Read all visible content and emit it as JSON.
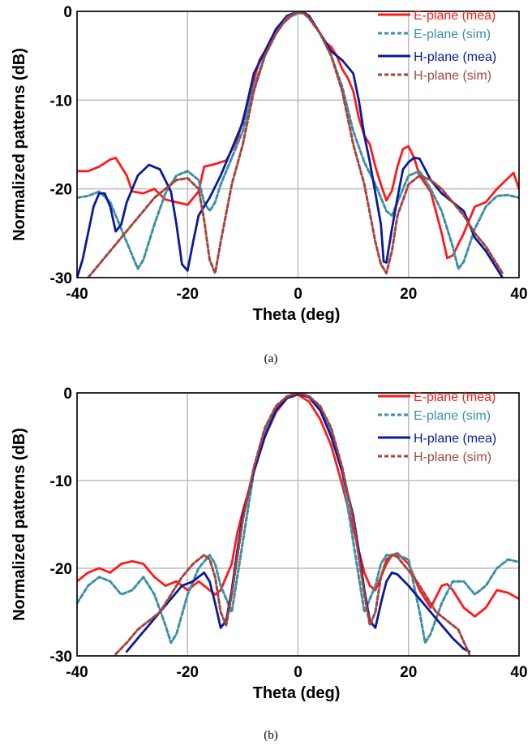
{
  "chart_data": [
    {
      "type": "line",
      "caption": "(a)",
      "xlabel": "Theta (deg)",
      "ylabel": "Normalized patterns (dB)",
      "xlim": [
        -40,
        40
      ],
      "ylim": [
        -30,
        0
      ],
      "xticks": [
        "-40",
        "-20",
        "0",
        "20",
        "40"
      ],
      "yticks": [
        "0",
        "-10",
        "-20",
        "-30"
      ],
      "grid": true,
      "legend_position": "top-right",
      "series": [
        {
          "name": "E-plane (mea)",
          "color": "#ff1a1a",
          "dash": "solid",
          "x": [
            -40,
            -38,
            -36,
            -34,
            -33,
            -31,
            -30,
            -28,
            -26,
            -24,
            -22,
            -20,
            -18,
            -17,
            -15,
            -13,
            -11,
            -9,
            -7,
            -5,
            -3,
            -1,
            0,
            1,
            2,
            3,
            4,
            5,
            6,
            7,
            8,
            9,
            10,
            11,
            12,
            13,
            14,
            15,
            16,
            17,
            18,
            19,
            20,
            21,
            22,
            24,
            26,
            27,
            28,
            30,
            32,
            34,
            36,
            38,
            39,
            40
          ],
          "y": [
            -18,
            -18,
            -17.5,
            -16.7,
            -16.5,
            -18.5,
            -20.3,
            -20.5,
            -20,
            -21.2,
            -21.5,
            -21.8,
            -20.3,
            -17.5,
            -17.2,
            -16.8,
            -14.5,
            -10,
            -5.5,
            -3.5,
            -1.5,
            -0.4,
            -0.1,
            -0.2,
            -0.5,
            -1.5,
            -2.5,
            -3.5,
            -4,
            -5,
            -6.5,
            -7.5,
            -9,
            -12,
            -14,
            -15,
            -17.5,
            -19.5,
            -21.3,
            -20.2,
            -17.5,
            -15.5,
            -15.2,
            -16.5,
            -18.5,
            -20.3,
            -25,
            -27.8,
            -27.5,
            -25,
            -22,
            -21.5,
            -20,
            -18.8,
            -18.2,
            -20
          ]
        },
        {
          "name": "E-plane (sim)",
          "color": "#3d8fa6",
          "dash": "dotted",
          "x": [
            -40,
            -38,
            -36,
            -34,
            -32,
            -30,
            -29,
            -28,
            -26,
            -24,
            -22,
            -20,
            -18,
            -17,
            -16,
            -15,
            -14,
            -12,
            -10,
            -8,
            -6,
            -4,
            -2,
            0,
            1,
            2,
            4,
            6,
            8,
            10,
            12,
            14,
            16,
            17,
            18,
            20,
            22,
            24,
            26,
            28,
            29,
            30,
            32,
            34,
            36,
            38,
            40
          ],
          "y": [
            -21,
            -20.8,
            -20.3,
            -21.5,
            -24.5,
            -27.5,
            -29,
            -28,
            -24,
            -20.5,
            -18.5,
            -18,
            -19,
            -21.5,
            -22.5,
            -21.5,
            -19.5,
            -16.5,
            -13.5,
            -8.5,
            -5,
            -2.5,
            -0.8,
            -0.2,
            -0.2,
            -0.8,
            -2.5,
            -5,
            -8.5,
            -13.5,
            -17,
            -19.5,
            -22.5,
            -23,
            -21.5,
            -18.5,
            -18,
            -20,
            -22.5,
            -26.5,
            -29,
            -28.2,
            -24.5,
            -22,
            -20.8,
            -20.7,
            -21
          ]
        },
        {
          "name": "H-plane (mea)",
          "color": "#0a1a99",
          "dash": "solid",
          "x": [
            -40,
            -39,
            -37,
            -36,
            -35,
            -34,
            -33,
            -32,
            -31,
            -29,
            -27,
            -25,
            -23,
            -22,
            -21,
            -20,
            -19,
            -18,
            -16,
            -14,
            -12,
            -10,
            -8,
            -6,
            -4,
            -2,
            0,
            1,
            2,
            4,
            6,
            8,
            10,
            11,
            12,
            13,
            14,
            15,
            15.5,
            16,
            17,
            18,
            19,
            20,
            21,
            22,
            23,
            24,
            26,
            28,
            30,
            32,
            34,
            36,
            37
          ],
          "y": [
            -30,
            -28,
            -22,
            -20.5,
            -20.5,
            -22,
            -24.8,
            -24,
            -21.5,
            -18.5,
            -17.3,
            -17.8,
            -20.3,
            -24,
            -28.5,
            -29.2,
            -26,
            -23,
            -21,
            -18.5,
            -15.5,
            -12.5,
            -7,
            -4.5,
            -2,
            -0.5,
            0,
            -0.1,
            -0.5,
            -2.5,
            -4.5,
            -5.5,
            -7,
            -10,
            -14,
            -17,
            -20.5,
            -24,
            -28.2,
            -28.3,
            -24.5,
            -21,
            -17.8,
            -17,
            -16.5,
            -16.6,
            -17.8,
            -19,
            -20.5,
            -21.5,
            -22.5,
            -25.5,
            -27,
            -29,
            -30
          ]
        },
        {
          "name": "H-plane (sim)",
          "color": "#a4453e",
          "dash": "dotted",
          "x": [
            -38,
            -36,
            -34,
            -32,
            -30,
            -28,
            -26,
            -24,
            -22,
            -20,
            -18,
            -17,
            -16,
            -15,
            -14,
            -12,
            -10,
            -8,
            -6,
            -4,
            -2,
            0,
            1,
            2,
            4,
            6,
            8,
            10,
            12,
            14,
            15,
            16,
            17,
            18,
            20,
            22,
            24,
            26,
            28,
            30,
            32,
            34,
            36,
            37
          ],
          "y": [
            -30,
            -28.5,
            -27,
            -25.5,
            -24,
            -22.5,
            -21,
            -20,
            -19,
            -18.8,
            -20,
            -23.5,
            -28,
            -29.5,
            -26,
            -19.5,
            -15,
            -9,
            -5,
            -2.5,
            -0.7,
            0,
            -0.2,
            -0.7,
            -2.5,
            -5,
            -9,
            -15,
            -19.5,
            -26,
            -28.5,
            -29.5,
            -27,
            -23,
            -19.5,
            -18.5,
            -19,
            -20,
            -21.5,
            -23,
            -25,
            -26.5,
            -28.5,
            -29.5
          ]
        }
      ]
    },
    {
      "type": "line",
      "caption": "(b)",
      "xlabel": "Theta (deg)",
      "ylabel": "Normalized patterns (dB)",
      "xlim": [
        -40,
        40
      ],
      "ylim": [
        -30,
        0
      ],
      "xticks": [
        "-40",
        "-20",
        "0",
        "20",
        "40"
      ],
      "yticks": [
        "0",
        "-10",
        "-20",
        "-30"
      ],
      "grid": true,
      "legend_position": "top-right",
      "series": [
        {
          "name": "E-plane (mea)",
          "color": "#ff1a1a",
          "dash": "solid",
          "x": [
            -40,
            -38,
            -36,
            -34,
            -32,
            -30,
            -28,
            -26,
            -24,
            -22,
            -20,
            -18,
            -16,
            -15,
            -14,
            -13,
            -12,
            -11,
            -10,
            -8,
            -6,
            -4,
            -2,
            0,
            2,
            4,
            6,
            8,
            10,
            12,
            13,
            14,
            15,
            16,
            17,
            18,
            20,
            22,
            24,
            26,
            27,
            28,
            30,
            32,
            34,
            36,
            38,
            40
          ],
          "y": [
            -21.5,
            -20.5,
            -20,
            -20.5,
            -19.5,
            -19.2,
            -19.5,
            -21,
            -22,
            -21.5,
            -22.5,
            -21.5,
            -22.5,
            -23,
            -22.5,
            -21,
            -19.5,
            -16,
            -13.5,
            -9,
            -5,
            -2.2,
            -0.6,
            -0.2,
            -1,
            -3,
            -6,
            -10.5,
            -15.5,
            -20.5,
            -22,
            -22.5,
            -21,
            -19.5,
            -18.5,
            -18.3,
            -19.5,
            -22.5,
            -24.5,
            -22,
            -21.8,
            -22.5,
            -24.5,
            -25.5,
            -24.5,
            -22.5,
            -22.8,
            -23.5
          ]
        },
        {
          "name": "E-plane (sim)",
          "color": "#3d8fa6",
          "dash": "dotted",
          "x": [
            -40,
            -38,
            -36,
            -34,
            -32,
            -30,
            -28,
            -26,
            -24,
            -23,
            -22,
            -20,
            -18,
            -16,
            -15,
            -14,
            -12,
            -10,
            -8,
            -6,
            -4,
            -2,
            0,
            2,
            4,
            6,
            8,
            10,
            12,
            14,
            15,
            16,
            18,
            20,
            22,
            23,
            24,
            26,
            28,
            30,
            32,
            34,
            36,
            38,
            40
          ],
          "y": [
            -24,
            -22,
            -21,
            -21.5,
            -23,
            -22.5,
            -21,
            -23,
            -26.5,
            -28.5,
            -27.5,
            -23,
            -20,
            -18.5,
            -19.5,
            -22,
            -25,
            -17,
            -9,
            -4.5,
            -1.8,
            -0.4,
            0,
            -0.4,
            -1.8,
            -4.5,
            -9,
            -17,
            -25,
            -22,
            -19.5,
            -18.5,
            -18.5,
            -19,
            -25,
            -28.5,
            -27.5,
            -24,
            -21.5,
            -21.5,
            -23,
            -22,
            -20,
            -19,
            -19.3
          ]
        },
        {
          "name": "H-plane (mea)",
          "color": "#0a1a99",
          "dash": "solid",
          "x": [
            -31,
            -29,
            -27,
            -25,
            -23,
            -21,
            -19,
            -17,
            -16,
            -15,
            -14,
            -13,
            -12,
            -11,
            -10,
            -8,
            -6,
            -4,
            -2,
            0,
            2,
            4,
            6,
            8,
            10,
            11,
            12,
            13,
            14,
            15,
            16,
            17,
            18,
            20,
            22,
            24,
            26,
            28,
            30,
            31
          ],
          "y": [
            -29.5,
            -28,
            -26.5,
            -25,
            -23.5,
            -22,
            -21.5,
            -20.5,
            -21.5,
            -24,
            -26.8,
            -26,
            -22.5,
            -18,
            -14,
            -9,
            -5,
            -2,
            -0.6,
            -0.1,
            -0.5,
            -2,
            -5,
            -9,
            -14,
            -18,
            -22.5,
            -26,
            -26.8,
            -24,
            -21.5,
            -20.5,
            -20.7,
            -22,
            -23.5,
            -25,
            -26.5,
            -28,
            -29.2,
            -29.5
          ]
        },
        {
          "name": "H-plane (sim)",
          "color": "#a4453e",
          "dash": "dotted",
          "x": [
            -33,
            -31,
            -29,
            -27,
            -25,
            -23,
            -21,
            -19,
            -17,
            -16,
            -15,
            -14,
            -13,
            -12,
            -10,
            -8,
            -6,
            -4,
            -2,
            0,
            2,
            4,
            6,
            8,
            10,
            12,
            13,
            14,
            15,
            16,
            17,
            18,
            19,
            21,
            23,
            25,
            27,
            29,
            31
          ],
          "y": [
            -29.8,
            -28.5,
            -27,
            -26,
            -25,
            -23,
            -21,
            -19.5,
            -18.5,
            -19,
            -21,
            -25,
            -26.5,
            -23,
            -14.5,
            -8.5,
            -4,
            -1.5,
            -0.4,
            0,
            -0.4,
            -1.5,
            -4,
            -8.5,
            -14.5,
            -23,
            -26.5,
            -25,
            -21,
            -19,
            -18.5,
            -18.7,
            -19.5,
            -21,
            -23,
            -25,
            -26,
            -27,
            -29.8
          ]
        }
      ]
    }
  ]
}
